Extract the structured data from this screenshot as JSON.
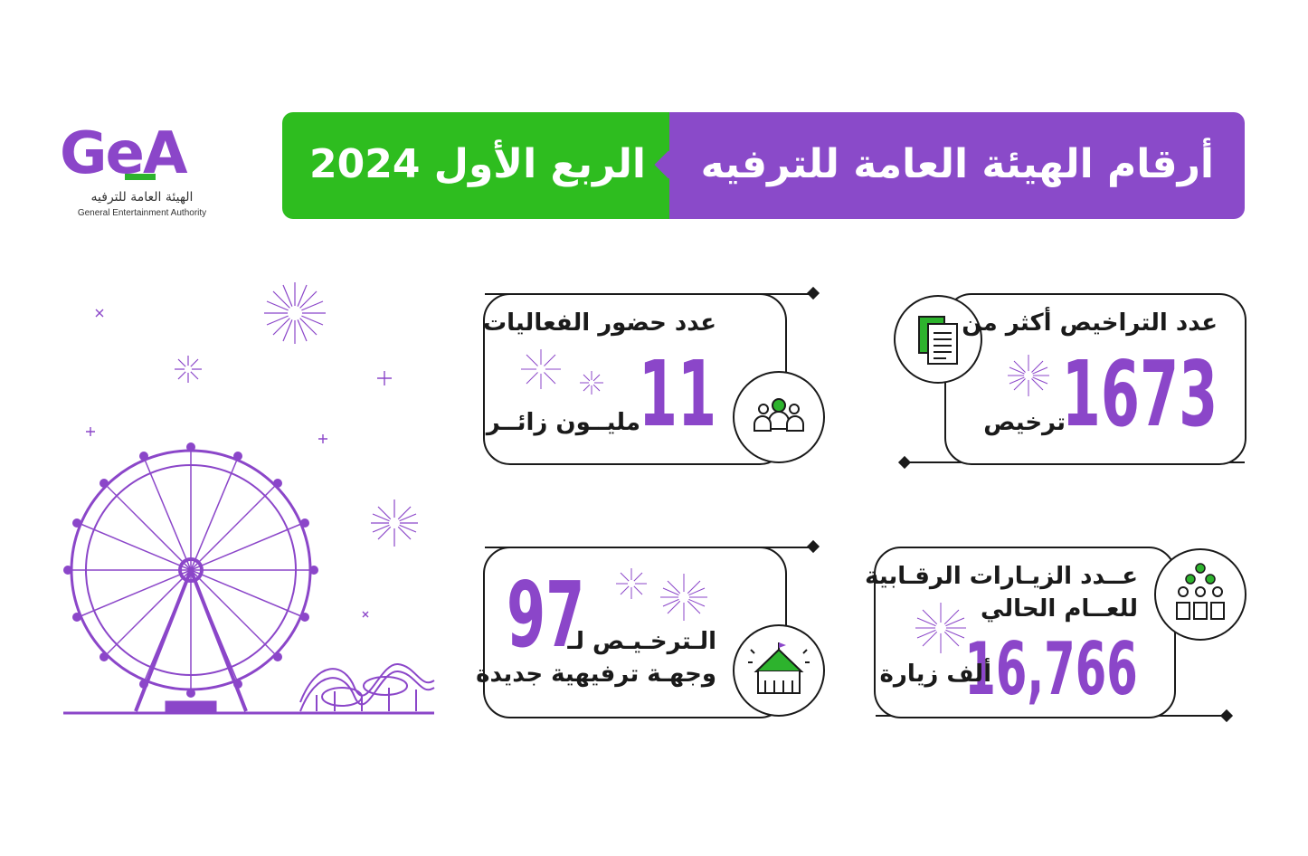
{
  "logo": {
    "mark": "GeA",
    "arabic_name": "الهيئة العامة للترفيه",
    "english_name": "General Entertainment Authority"
  },
  "header": {
    "title": "أرقام الهيئة العامة للترفيه",
    "period": "الربع الأول 2024"
  },
  "stats": {
    "licenses": {
      "label": "عدد التراخيص أكثر من",
      "value": "1673",
      "unit": "ترخيص",
      "icon": "document-icon"
    },
    "attendance": {
      "label": "عدد حضور الفعاليات",
      "value": "11",
      "unit": "مليــون زائــر",
      "icon": "people-group-icon"
    },
    "inspections": {
      "label_line1": "عــدد الزيـارات الرقـابية",
      "label_line2": "للعــام الحالي",
      "value": "16,766",
      "unit": "ألف زيارة",
      "icon": "inspectors-icon"
    },
    "destinations": {
      "value": "97",
      "label_line1": "الـترخـيـص لـ",
      "label_line2": "وجهـة ترفيهية جديدة",
      "icon": "circus-tent-icon"
    }
  },
  "colors": {
    "purple": "#8b46c9",
    "green": "#2ebd1f",
    "ink": "#1a1a1a"
  }
}
